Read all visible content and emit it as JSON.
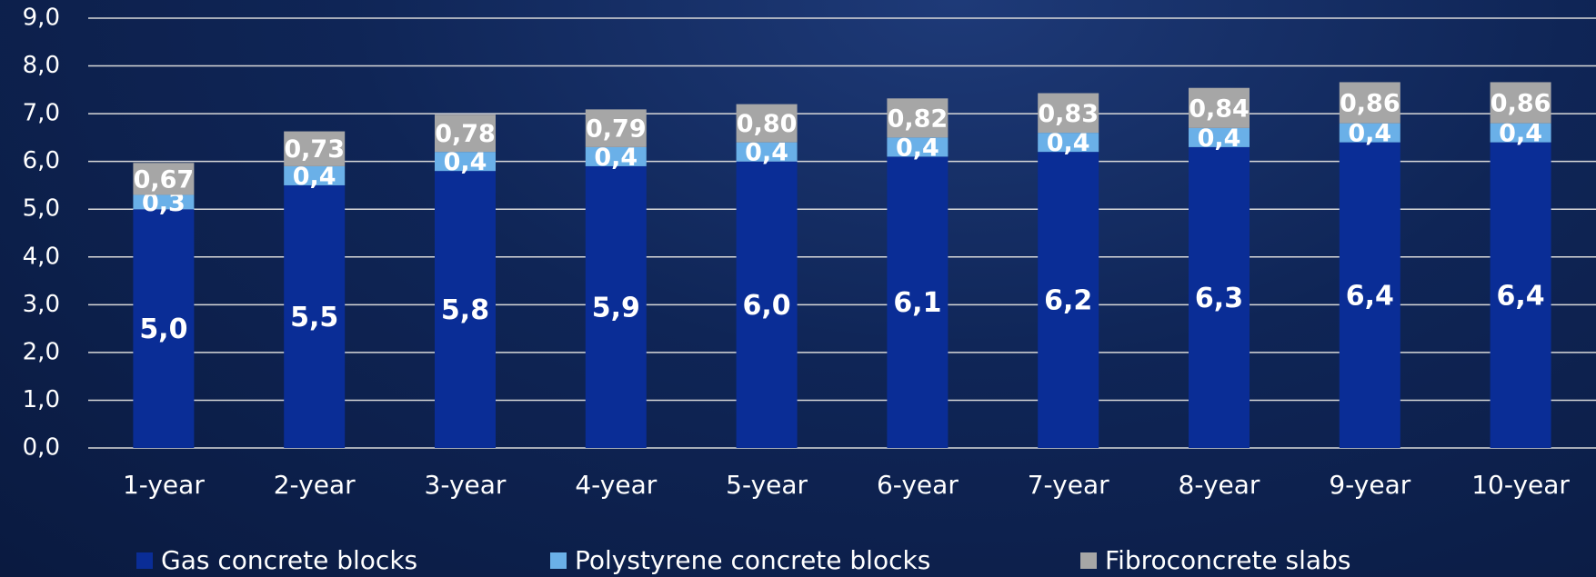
{
  "chart_data": {
    "type": "stacked_bar",
    "categories": [
      "1-year",
      "2-year",
      "3-year",
      "4-year",
      "5-year",
      "6-year",
      "7-year",
      "8-year",
      "9-year",
      "10-year"
    ],
    "series": [
      {
        "name": "Gas concrete blocks",
        "color": "#0a2d96",
        "values": [
          5.0,
          5.5,
          5.8,
          5.9,
          6.0,
          6.1,
          6.2,
          6.3,
          6.4,
          6.4
        ],
        "value_labels": [
          "5,0",
          "5,5",
          "5,8",
          "5,9",
          "6,0",
          "6,1",
          "6,2",
          "6,3",
          "6,4",
          "6,4"
        ]
      },
      {
        "name": "Polystyrene concrete blocks",
        "color": "#6ab0e8",
        "values": [
          0.3,
          0.4,
          0.4,
          0.4,
          0.4,
          0.4,
          0.4,
          0.4,
          0.4,
          0.4
        ],
        "value_labels": [
          "0,3",
          "0,4",
          "0,4",
          "0,4",
          "0,4",
          "0,4",
          "0,4",
          "0,4",
          "0,4",
          "0,4"
        ]
      },
      {
        "name": "Fibroconcrete slabs",
        "color": "#a6a6a6",
        "values": [
          0.67,
          0.73,
          0.78,
          0.79,
          0.8,
          0.82,
          0.83,
          0.84,
          0.86,
          0.86
        ],
        "value_labels": [
          "0,67",
          "0,73",
          "0,78",
          "0,79",
          "0,80",
          "0,82",
          "0,83",
          "0,84",
          "0,86",
          "0,86"
        ]
      }
    ],
    "ylim": [
      0,
      9
    ],
    "yticks": [
      {
        "value": 0,
        "label": "0,0"
      },
      {
        "value": 1,
        "label": "1,0"
      },
      {
        "value": 2,
        "label": "2,0"
      },
      {
        "value": 3,
        "label": "3,0"
      },
      {
        "value": 4,
        "label": "4,0"
      },
      {
        "value": 5,
        "label": "5,0"
      },
      {
        "value": 6,
        "label": "6,0"
      },
      {
        "value": 7,
        "label": "7,0"
      },
      {
        "value": 8,
        "label": "8,0"
      },
      {
        "value": 9,
        "label": "9,0"
      }
    ],
    "grid": true,
    "legend": "bottom"
  }
}
